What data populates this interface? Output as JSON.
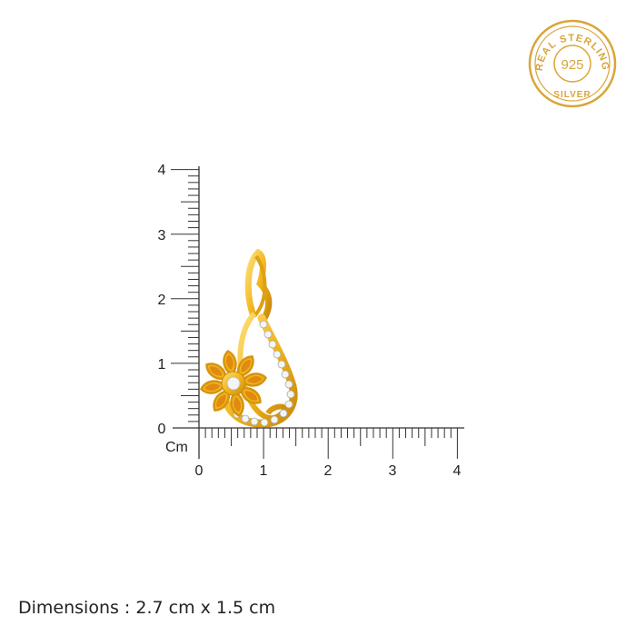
{
  "badge": {
    "top_text": "REAL STERLING",
    "center_text": "925",
    "bottom_text": "SILVER",
    "color": "#D9A53A"
  },
  "ruler": {
    "unit": "Cm",
    "x_ticks": [
      "0",
      "1",
      "2",
      "3",
      "4"
    ],
    "y_ticks": [
      "0",
      "1",
      "2",
      "3",
      "4"
    ],
    "range_cm": [
      0,
      4
    ],
    "minor_step_cm": 0.1
  },
  "product": {
    "metal_color": "#F2B51C",
    "stone_color": "#F4F4F4"
  },
  "dimensions_text": "Dimensions : 2.7 cm x 1.5 cm"
}
